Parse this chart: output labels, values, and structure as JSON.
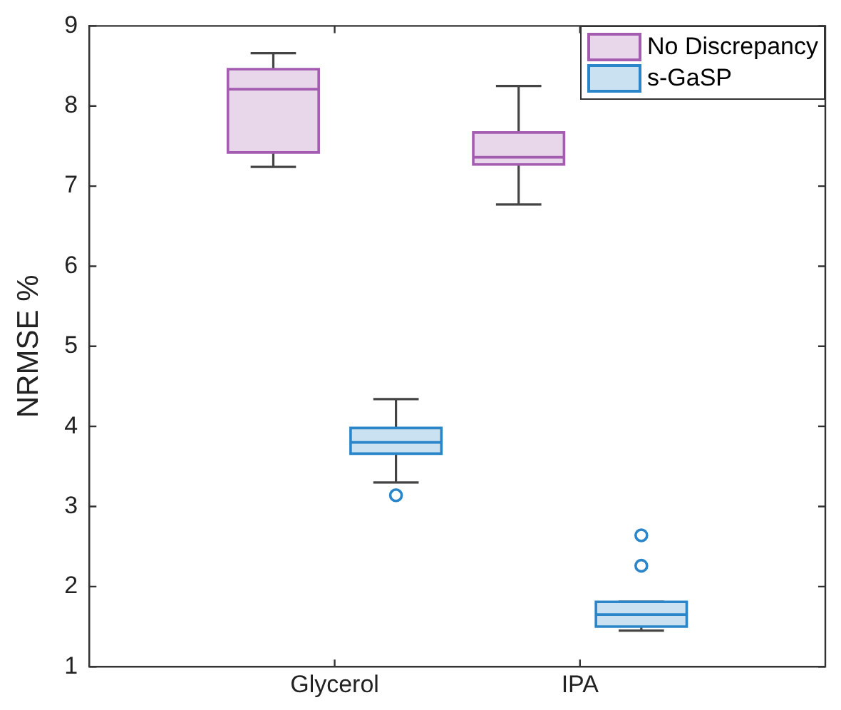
{
  "chart_data": {
    "type": "box",
    "ylabel": "NRMSE %",
    "categories": [
      "Glycerol",
      "IPA"
    ],
    "ylim": [
      1,
      9
    ],
    "yticks": [
      1,
      2,
      3,
      4,
      5,
      6,
      7,
      8,
      9
    ],
    "grid": false,
    "legend": "top right",
    "series": [
      {
        "name": "No Discrepancy",
        "color": "#a35cb0",
        "boxes": [
          {
            "low": 7.24,
            "q1": 7.42,
            "median": 8.21,
            "q3": 8.46,
            "high": 8.66
          },
          {
            "low": 6.77,
            "q1": 7.27,
            "median": 7.36,
            "q3": 7.67,
            "high": 8.25
          }
        ]
      },
      {
        "name": "s-GaSP",
        "color": "#2a86c8",
        "boxes": [
          {
            "low": 3.3,
            "q1": 3.66,
            "median": 3.8,
            "q3": 3.98,
            "high": 4.34,
            "outliers": [
              3.14
            ]
          },
          {
            "low": 1.45,
            "q1": 1.5,
            "median": 1.65,
            "q3": 1.81,
            "high": 1.81,
            "outliers": [
              2.26,
              2.64
            ]
          }
        ]
      }
    ]
  }
}
